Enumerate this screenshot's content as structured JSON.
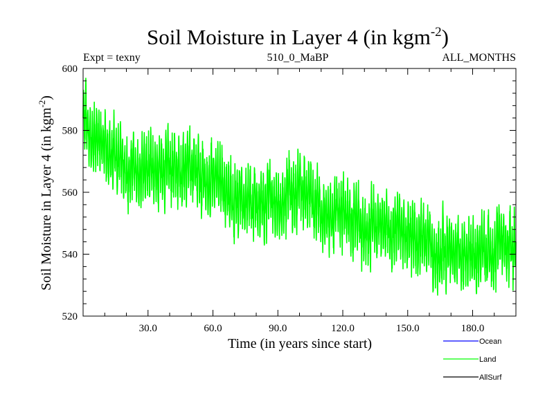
{
  "chart_data": {
    "type": "line",
    "title": "Soil Moisture in Layer 4 (in kgm",
    "title_sup": "-2",
    "title_close": ")",
    "subtitle_left": "Expt = texny",
    "subtitle_center": "510_0_MaBP",
    "subtitle_right": "ALL_MONTHS",
    "xlabel": "Time (in years since start)",
    "ylabel": "Soil Moisture in Layer 4 (in kgm",
    "ylabel_sup": "-2",
    "ylabel_close": ")",
    "xlim": [
      0,
      200
    ],
    "ylim": [
      520,
      600
    ],
    "x_ticks": [
      30,
      60,
      90,
      120,
      150,
      180
    ],
    "x_tick_labels": [
      "30.0",
      "60.0",
      "90.0",
      "120.0",
      "150.0",
      "180.0"
    ],
    "y_ticks": [
      520,
      540,
      560,
      580,
      600
    ],
    "y_tick_labels": [
      "520",
      "540",
      "560",
      "580",
      "600"
    ],
    "series": [
      {
        "name": "Land",
        "color": "#00ff00",
        "sampling": "monthly",
        "trend_x": [
          0,
          10,
          20,
          30,
          40,
          50,
          60,
          70,
          80,
          90,
          100,
          110,
          120,
          130,
          140,
          150,
          160,
          170,
          180,
          190,
          200
        ],
        "trend_y": [
          583,
          572,
          569,
          567,
          568,
          566,
          563,
          557,
          558,
          557,
          562,
          554,
          552,
          549,
          548,
          547,
          543,
          540,
          541,
          542,
          544
        ],
        "seasonal_amplitude": 9,
        "extreme_max": 597,
        "extreme_min": 522
      },
      {
        "name": "Ocean",
        "color": "#0000ff"
      },
      {
        "name": "AllSurf",
        "color": "#000000"
      }
    ],
    "legend": [
      {
        "name": "Ocean",
        "color": "#0000ff"
      },
      {
        "name": "Land",
        "color": "#00ff00"
      },
      {
        "name": "AllSurf",
        "color": "#000000"
      }
    ],
    "legend_position": "bottom-right"
  }
}
